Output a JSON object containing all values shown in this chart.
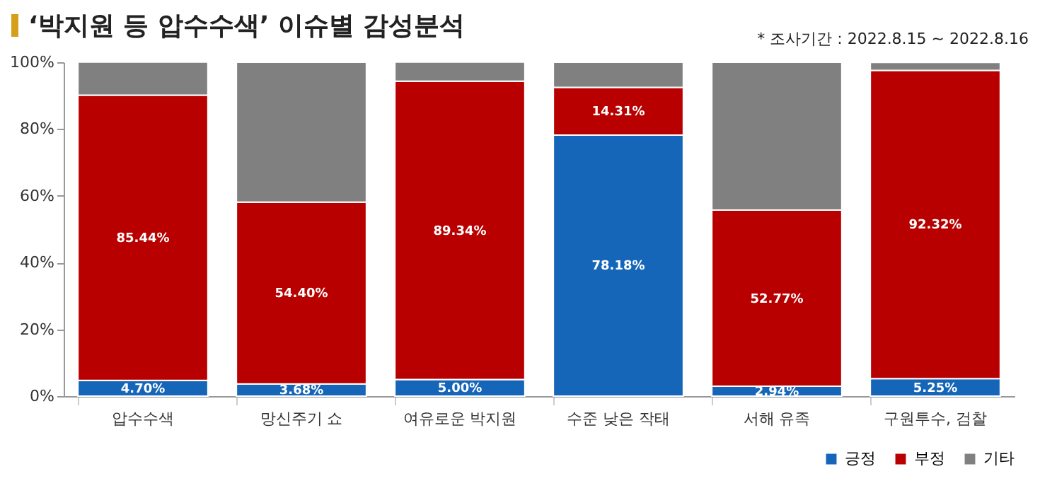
{
  "chart_data": {
    "type": "bar",
    "title": "‘박지원 등 압수수색’ 이슈별 감성분석",
    "annotations": [
      "* 조사기간 : 2022.8.15 ~ 2022.8.16"
    ],
    "categories": [
      "압수수색",
      "망신주기 쇼",
      "여유로운 박지원",
      "수준 낮은 작태",
      "서해 유족",
      "구원투수, 검찰"
    ],
    "stacked": true,
    "ylim": [
      0,
      100
    ],
    "yticks": [
      {
        "value": 0,
        "label": "0%"
      },
      {
        "value": 20,
        "label": "20%"
      },
      {
        "value": 40,
        "label": "40%"
      },
      {
        "value": 60,
        "label": "60%"
      },
      {
        "value": 80,
        "label": "80%"
      },
      {
        "value": 100,
        "label": "100%"
      }
    ],
    "series": [
      {
        "name": "긍정",
        "color": "#1565b8",
        "values": [
          4.7,
          3.68,
          5.0,
          78.18,
          2.94,
          5.25
        ],
        "value_labels": [
          "4.70%",
          "3.68%",
          "5.00%",
          "78.18%",
          "2.94%",
          "5.25%"
        ]
      },
      {
        "name": "부정",
        "color": "#b80000",
        "values": [
          85.44,
          54.4,
          89.34,
          14.31,
          52.77,
          92.32
        ],
        "value_labels": [
          "85.44%",
          "54.40%",
          "89.34%",
          "14.31%",
          "52.77%",
          "92.32%"
        ]
      },
      {
        "name": "기타",
        "color": "#808080",
        "values": [
          9.9,
          41.9,
          5.7,
          7.5,
          44.3,
          2.4
        ]
      }
    ],
    "legend": "bottom right",
    "grid": false
  }
}
